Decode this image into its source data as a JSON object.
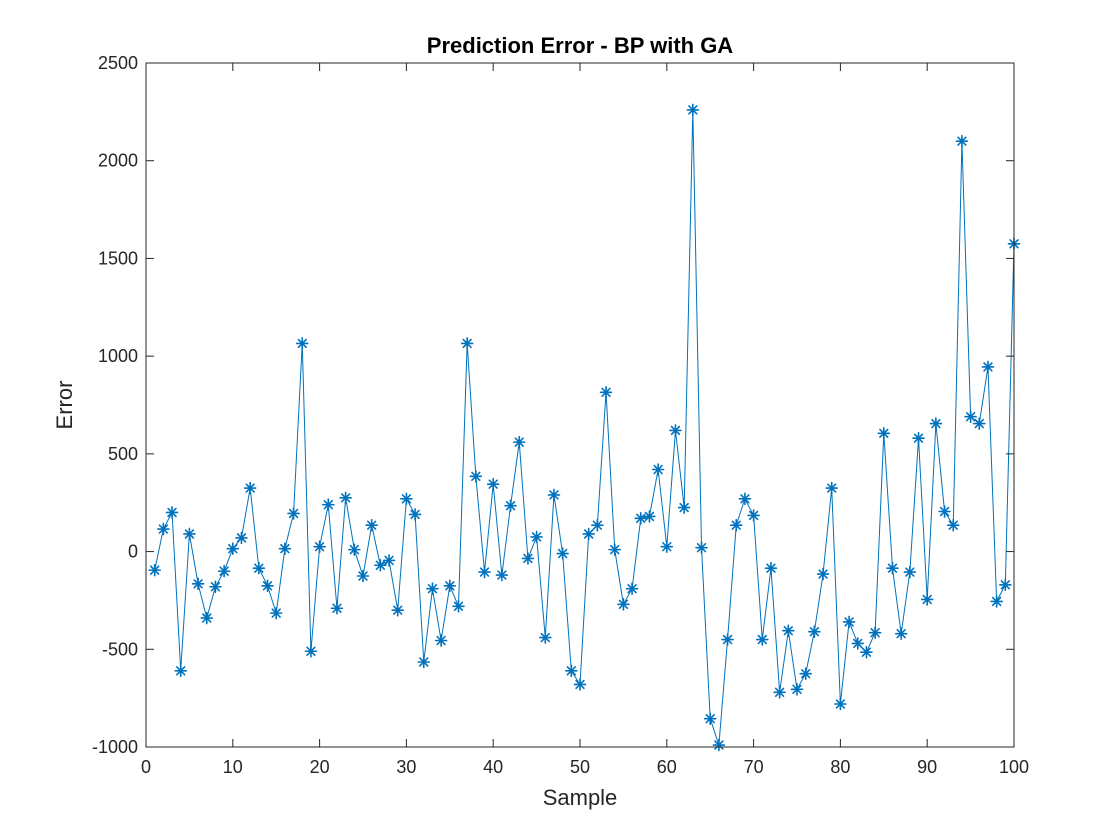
{
  "chart_data": {
    "type": "line",
    "title": "Prediction Error  - BP with GA",
    "xlabel": "Sample",
    "ylabel": "Error",
    "xlim": [
      0,
      100
    ],
    "ylim": [
      -1000,
      2500
    ],
    "xticks": [
      0,
      10,
      20,
      30,
      40,
      50,
      60,
      70,
      80,
      90,
      100
    ],
    "yticks": [
      -1000,
      -500,
      0,
      500,
      1000,
      1500,
      2000,
      2500
    ],
    "xtick_labels": [
      "0",
      "10",
      "20",
      "30",
      "40",
      "50",
      "60",
      "70",
      "80",
      "90",
      "100"
    ],
    "ytick_labels": [
      "-1000",
      "-500",
      "0",
      "500",
      "1000",
      "1500",
      "2000",
      "2500"
    ],
    "grid": false,
    "marker": "asterisk",
    "color": "#0072BD",
    "series": [
      {
        "x": [
          1,
          2,
          3,
          4,
          5,
          6,
          7,
          8,
          9,
          10,
          11,
          12,
          13,
          14,
          15,
          16,
          17,
          18,
          19,
          20,
          21,
          22,
          23,
          24,
          25,
          26,
          27,
          28,
          29,
          30,
          31,
          32,
          33,
          34,
          35,
          36,
          37,
          38,
          39,
          40,
          41,
          42,
          43,
          44,
          45,
          46,
          47,
          48,
          49,
          50,
          51,
          52,
          53,
          54,
          55,
          56,
          57,
          58,
          59,
          60,
          61,
          62,
          63,
          64,
          65,
          66,
          67,
          68,
          69,
          70,
          71,
          72,
          73,
          74,
          75,
          76,
          77,
          78,
          79,
          80,
          81,
          82,
          83,
          84,
          85,
          86,
          87,
          88,
          89,
          90,
          91,
          92,
          93,
          94,
          95,
          96,
          97,
          98,
          99,
          100
        ],
        "values": [
          -95,
          115,
          200,
          -610,
          90,
          -165,
          -340,
          -180,
          -100,
          15,
          70,
          325,
          -85,
          -175,
          -315,
          15,
          195,
          1065,
          -510,
          25,
          240,
          -290,
          275,
          10,
          -125,
          135,
          -70,
          -45,
          -300,
          270,
          190,
          -565,
          -190,
          -455,
          -175,
          -280,
          1065,
          385,
          -105,
          345,
          -120,
          235,
          560,
          -35,
          75,
          -440,
          290,
          -10,
          -610,
          -680,
          90,
          135,
          815,
          10,
          -270,
          -190,
          170,
          180,
          420,
          25,
          620,
          225,
          2260,
          20,
          -855,
          -990,
          -450,
          135,
          270,
          185,
          -450,
          -85,
          -720,
          -405,
          -705,
          -625,
          -410,
          -115,
          325,
          -780,
          -360,
          -470,
          -515,
          -415,
          605,
          -85,
          -420,
          -105,
          580,
          -245,
          655,
          205,
          135,
          2100,
          690,
          655,
          945,
          -255,
          -170,
          1575
        ]
      }
    ]
  }
}
